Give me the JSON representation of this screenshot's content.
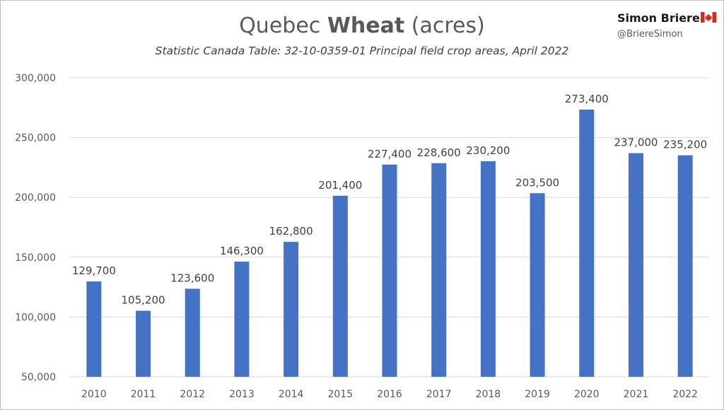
{
  "header": {
    "title_prefix": "Quebec",
    "title_bold": "Wheat",
    "title_suffix": "(acres)",
    "subtitle": "Statistic Canada Table: 32-10-0359-01 Principal field crop areas, April 2022",
    "author": "Simon Briere",
    "handle": "@BriereSimon",
    "flag_icon": "canada-flag-icon"
  },
  "colors": {
    "bar": "#4472c4",
    "gridline": "#d9d9d9",
    "flag_red": "#d52b1e"
  },
  "chart_data": {
    "type": "bar",
    "title": "Quebec Wheat (acres)",
    "subtitle": "Statistic Canada Table: 32-10-0359-01 Principal field crop areas, April 2022",
    "xlabel": "",
    "ylabel": "",
    "ylim": [
      50000,
      300000
    ],
    "yticks": [
      {
        "value": 50000,
        "label": "50,000"
      },
      {
        "value": 100000,
        "label": "100,000"
      },
      {
        "value": 150000,
        "label": "150,000"
      },
      {
        "value": 200000,
        "label": "200,000"
      },
      {
        "value": 250000,
        "label": "250,000"
      },
      {
        "value": 300000,
        "label": "300,000"
      }
    ],
    "grid": true,
    "legend": "none",
    "categories": [
      "2010",
      "2011",
      "2012",
      "2013",
      "2014",
      "2015",
      "2016",
      "2017",
      "2018",
      "2019",
      "2020",
      "2021",
      "2022"
    ],
    "values": [
      129700,
      105200,
      123600,
      146300,
      162800,
      201400,
      227400,
      228600,
      230200,
      203500,
      273400,
      237000,
      235200
    ],
    "data_labels": [
      "129,700",
      "105,200",
      "123,600",
      "146,300",
      "162,800",
      "201,400",
      "227,400",
      "228,600",
      "230,200",
      "203,500",
      "273,400",
      "237,000",
      "235,200"
    ]
  }
}
